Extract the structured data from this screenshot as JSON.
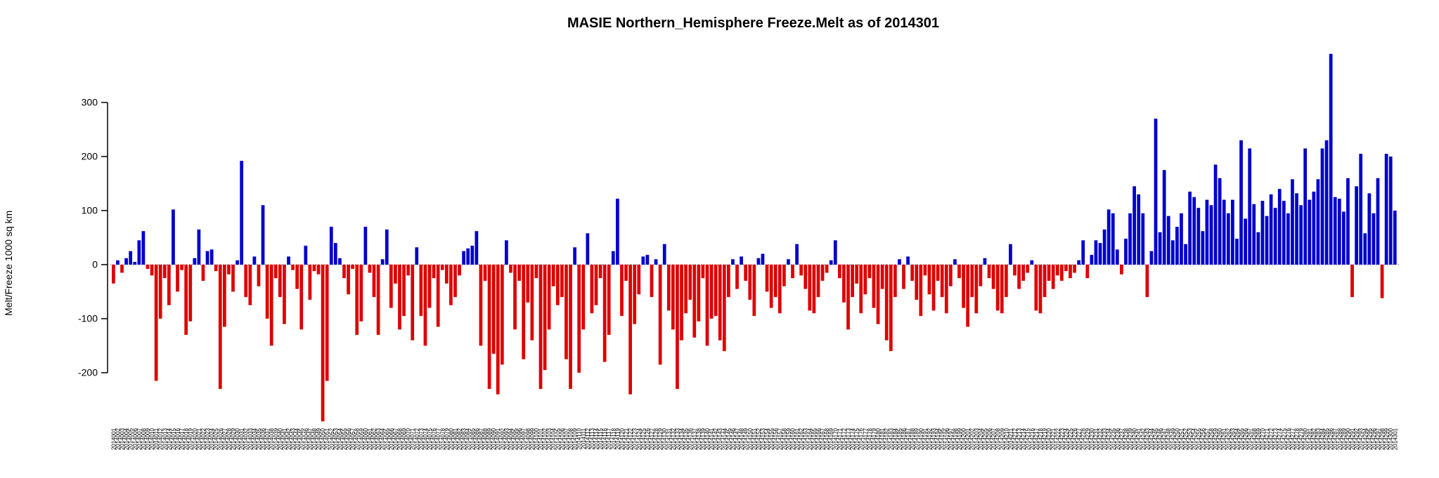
{
  "page": {
    "background": "#ffffff"
  },
  "chart_data": {
    "type": "bar",
    "title": "MASIE Northern_Hemisphere Freeze.Melt as of 2014301",
    "xlabel": "",
    "ylabel": "Melt/Freeze 1000 sq km",
    "ylim": [
      -300,
      400
    ],
    "yticks": [
      -200,
      -100,
      0,
      100,
      200,
      300
    ],
    "grid": false,
    "legend": "none",
    "zero_line_style": "dotted",
    "colors": {
      "positive": "#0000CD",
      "negative": "#DD0000",
      "axis": "#000000",
      "text": "#000000"
    },
    "x_label_format": "YYYYDDD",
    "x_year": "2014",
    "x_start_day": 1,
    "x_end_day": 301,
    "values": [
      -35,
      8,
      -15,
      12,
      25,
      5,
      45,
      62,
      -8,
      -20,
      -215,
      -100,
      -25,
      -75,
      102,
      -50,
      -10,
      -130,
      -105,
      12,
      65,
      -30,
      25,
      28,
      -12,
      -230,
      -115,
      -18,
      -50,
      8,
      192,
      -60,
      -75,
      15,
      -40,
      110,
      -100,
      -150,
      -25,
      -60,
      -110,
      15,
      -10,
      -45,
      -120,
      35,
      -65,
      -12,
      -18,
      -290,
      -215,
      70,
      40,
      12,
      -25,
      -55,
      -8,
      -130,
      -105,
      70,
      -15,
      -60,
      -130,
      10,
      65,
      -80,
      -35,
      -120,
      -95,
      -20,
      -140,
      32,
      -95,
      -150,
      -80,
      -25,
      -115,
      -10,
      -35,
      -75,
      -60,
      -20,
      25,
      30,
      35,
      62,
      -150,
      -30,
      -230,
      -165,
      -240,
      -185,
      45,
      -15,
      -120,
      -30,
      -175,
      -70,
      -140,
      -25,
      -230,
      -195,
      -120,
      -40,
      -75,
      -60,
      -175,
      -230,
      32,
      -200,
      -120,
      58,
      -90,
      -75,
      -25,
      -180,
      -130,
      25,
      122,
      -95,
      -30,
      -240,
      -110,
      -55,
      15,
      18,
      -60,
      10,
      -185,
      38,
      -85,
      -120,
      -230,
      -140,
      -90,
      -65,
      -135,
      -105,
      -25,
      -150,
      -100,
      -95,
      -140,
      -160,
      -60,
      10,
      -45,
      15,
      -30,
      -65,
      -95,
      12,
      20,
      -50,
      -80,
      -60,
      -90,
      -40,
      10,
      -25,
      38,
      -20,
      -45,
      -85,
      -90,
      -60,
      -30,
      -15,
      8,
      45,
      -25,
      -70,
      -120,
      -60,
      -35,
      -90,
      -55,
      -25,
      -80,
      -110,
      -45,
      -140,
      -160,
      -60,
      10,
      -45,
      15,
      -30,
      -65,
      -95,
      -20,
      -55,
      -85,
      -30,
      -60,
      -90,
      -40,
      10,
      -25,
      -80,
      -115,
      -60,
      -90,
      -40,
      12,
      -25,
      -45,
      -85,
      -90,
      -60,
      38,
      -20,
      -45,
      -30,
      -15,
      8,
      -85,
      -90,
      -60,
      -30,
      -45,
      -20,
      -30,
      -12,
      -25,
      -15,
      8,
      45,
      -25,
      18,
      45,
      40,
      65,
      102,
      95,
      28,
      -18,
      48,
      95,
      145,
      130,
      95,
      -60,
      25,
      270,
      60,
      175,
      90,
      45,
      70,
      95,
      38,
      135,
      125,
      105,
      62,
      120,
      110,
      185,
      160,
      120,
      95,
      120,
      48,
      230,
      85,
      215,
      112,
      60,
      118,
      90,
      130,
      105,
      140,
      118,
      95,
      158,
      132,
      110,
      215,
      120,
      135,
      158,
      215,
      230,
      390,
      125,
      122,
      98,
      160,
      -60,
      145,
      205,
      58,
      132,
      95,
      160,
      -62,
      205,
      200,
      100
    ]
  }
}
